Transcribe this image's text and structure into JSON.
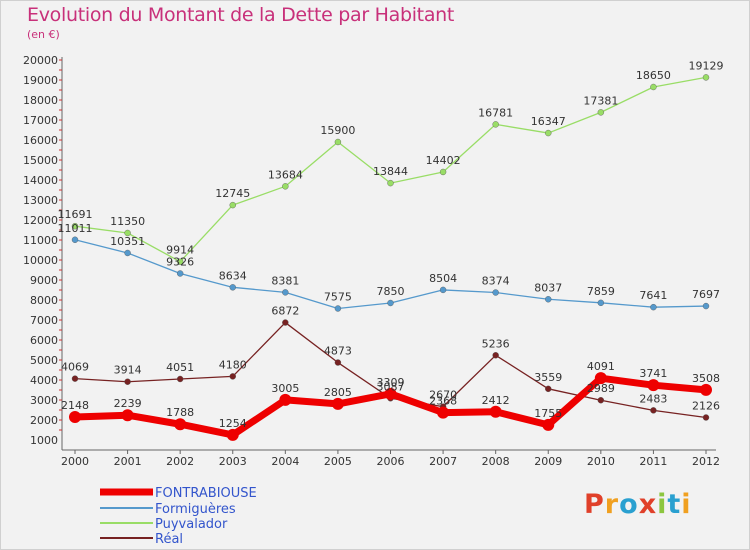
{
  "title": "Evolution du Montant de la Dette par Habitant",
  "subtitle": "(en €)",
  "logo": {
    "text": "Proxiti"
  },
  "colors": {
    "title": "#c8307a",
    "axis": "#666666",
    "dashes": "#d03030",
    "logo": [
      "#e0402a",
      "#f0a020",
      "#2aa0d0",
      "#e0402a",
      "#8cc63f",
      "#2aa0d0",
      "#f0a020"
    ]
  },
  "chart_data": {
    "type": "line",
    "x": [
      "2000",
      "2001",
      "2002",
      "2003",
      "2004",
      "2005",
      "2006",
      "2007",
      "2008",
      "2009",
      "2010",
      "2011",
      "2012"
    ],
    "ylim": [
      1000,
      20000
    ],
    "yticks": [
      1000,
      2000,
      3000,
      4000,
      5000,
      6000,
      7000,
      8000,
      9000,
      10000,
      11000,
      12000,
      13000,
      14000,
      15000,
      16000,
      17000,
      18000,
      19000,
      20000
    ],
    "legend_position": "bottom-left",
    "series": [
      {
        "name": "FONTRABIOUSE",
        "color": "#ee0000",
        "width": 7,
        "marker": 6,
        "values": [
          2148,
          2239,
          1788,
          1254,
          3005,
          2805,
          3309,
          2368,
          2412,
          1755,
          4091,
          3741,
          3508
        ]
      },
      {
        "name": "Formiguères",
        "color": "#5599cc",
        "width": 1.3,
        "marker": 3,
        "values": [
          11011,
          10351,
          9326,
          8634,
          8381,
          7575,
          7850,
          8504,
          8374,
          8037,
          7859,
          7641,
          7697
        ]
      },
      {
        "name": "Puyvalador",
        "color": "#99dd66",
        "width": 1.3,
        "marker": 3,
        "values": [
          11691,
          11350,
          9914,
          12745,
          13684,
          15900,
          13844,
          14402,
          16781,
          16347,
          17381,
          18650,
          19129
        ]
      },
      {
        "name": "Réal",
        "color": "#772222",
        "width": 1.3,
        "marker": 3,
        "values": [
          4069,
          3914,
          4051,
          4180,
          6872,
          4873,
          3087,
          2670,
          5236,
          3559,
          2989,
          2483,
          2126
        ]
      }
    ]
  }
}
